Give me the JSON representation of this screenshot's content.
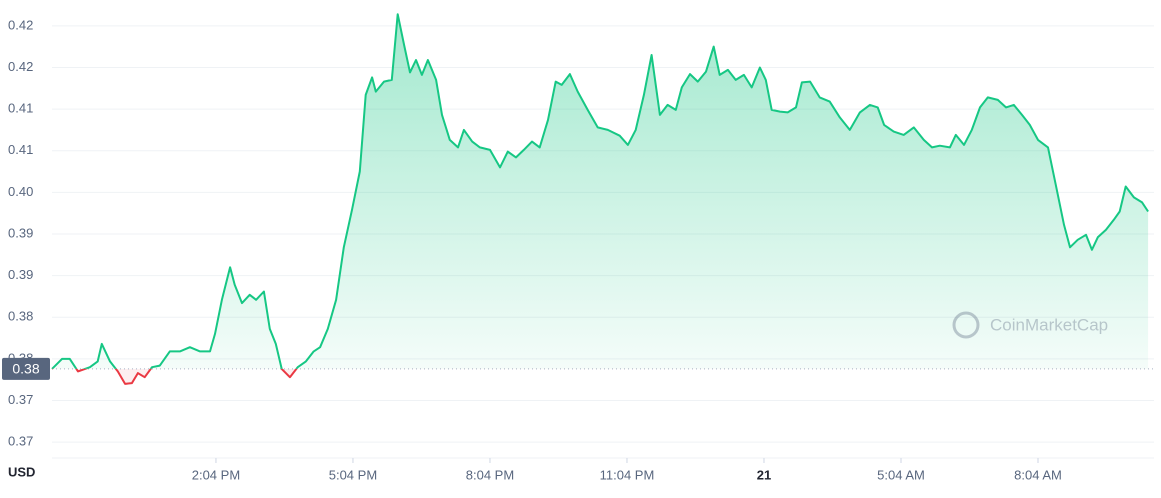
{
  "chart_data": {
    "type": "line",
    "currency": "USD",
    "watermark": "CoinMarketCap",
    "color": "#16c784",
    "down_color": "#ea3943",
    "grid": true,
    "reference": {
      "value": 0.3788,
      "label": "0.38"
    },
    "xlim": [
      10.48,
      34.61
    ],
    "ylim": [
      0.3681,
      0.4231
    ],
    "yticks": [
      {
        "value": 0.42,
        "label": "0.42"
      },
      {
        "value": 0.415,
        "label": "0.42"
      },
      {
        "value": 0.41,
        "label": "0.41"
      },
      {
        "value": 0.405,
        "label": "0.41"
      },
      {
        "value": 0.4,
        "label": "0.40"
      },
      {
        "value": 0.395,
        "label": "0.39"
      },
      {
        "value": 0.39,
        "label": "0.39"
      },
      {
        "value": 0.385,
        "label": "0.38"
      },
      {
        "value": 0.38,
        "label": "0.38"
      },
      {
        "value": 0.375,
        "label": "0.37"
      },
      {
        "value": 0.37,
        "label": "0.37"
      }
    ],
    "xticks": [
      {
        "value": 14.07,
        "label": "2:04 PM"
      },
      {
        "value": 17.07,
        "label": "5:04 PM"
      },
      {
        "value": 20.07,
        "label": "8:04 PM"
      },
      {
        "value": 23.07,
        "label": "11:04 PM"
      },
      {
        "value": 26.07,
        "label": "21"
      },
      {
        "value": 29.07,
        "label": "5:04 AM"
      },
      {
        "value": 32.07,
        "label": "8:04 AM"
      }
    ],
    "x": [
      10.48,
      10.7,
      10.87,
      11.05,
      11.31,
      11.48,
      11.57,
      11.75,
      11.92,
      12.08,
      12.23,
      12.36,
      12.51,
      12.67,
      12.84,
      13.06,
      13.28,
      13.5,
      13.72,
      13.94,
      14.05,
      14.2,
      14.38,
      14.48,
      14.64,
      14.81,
      14.95,
      15.12,
      15.25,
      15.38,
      15.51,
      15.69,
      15.86,
      16.04,
      16.21,
      16.35,
      16.52,
      16.7,
      16.87,
      17.05,
      17.22,
      17.35,
      17.49,
      17.57,
      17.75,
      17.92,
      18.05,
      18.19,
      18.32,
      18.45,
      18.58,
      18.71,
      18.89,
      19.02,
      19.19,
      19.37,
      19.5,
      19.68,
      19.85,
      20.07,
      20.29,
      20.46,
      20.64,
      20.81,
      20.99,
      21.16,
      21.34,
      21.51,
      21.64,
      21.82,
      21.99,
      22.21,
      22.43,
      22.65,
      22.91,
      23.09,
      23.26,
      23.44,
      23.61,
      23.79,
      23.96,
      24.14,
      24.27,
      24.45,
      24.62,
      24.8,
      24.97,
      25.1,
      25.28,
      25.45,
      25.63,
      25.8,
      25.98,
      26.11,
      26.24,
      26.42,
      26.59,
      26.77,
      26.9,
      27.08,
      27.29,
      27.51,
      27.73,
      27.95,
      28.17,
      28.39,
      28.56,
      28.7,
      28.91,
      29.13,
      29.35,
      29.57,
      29.75,
      29.92,
      30.14,
      30.27,
      30.45,
      30.62,
      30.8,
      30.97,
      31.19,
      31.37,
      31.54,
      31.72,
      31.89,
      32.07,
      32.29,
      32.46,
      32.64,
      32.77,
      32.94,
      33.12,
      33.25,
      33.38,
      33.56,
      33.73,
      33.86,
      33.99,
      34.17,
      34.35,
      34.48
    ],
    "values": [
      0.3788,
      0.38,
      0.38,
      0.3785,
      0.379,
      0.3797,
      0.3818,
      0.3797,
      0.3785,
      0.377,
      0.3771,
      0.3783,
      0.3778,
      0.379,
      0.3792,
      0.3809,
      0.3809,
      0.3814,
      0.3809,
      0.3809,
      0.383,
      0.3871,
      0.391,
      0.3889,
      0.3867,
      0.3877,
      0.3871,
      0.3881,
      0.3836,
      0.3818,
      0.3788,
      0.3778,
      0.379,
      0.3797,
      0.3809,
      0.3814,
      0.3836,
      0.3871,
      0.3934,
      0.3979,
      0.4025,
      0.4117,
      0.4138,
      0.4121,
      0.4133,
      0.4135,
      0.4214,
      0.4177,
      0.4144,
      0.4159,
      0.4141,
      0.4159,
      0.4135,
      0.4093,
      0.4063,
      0.4054,
      0.4075,
      0.4061,
      0.4054,
      0.4051,
      0.403,
      0.4049,
      0.4042,
      0.4051,
      0.4061,
      0.4054,
      0.4087,
      0.4133,
      0.4129,
      0.4142,
      0.4121,
      0.4099,
      0.4078,
      0.4075,
      0.4068,
      0.4057,
      0.4075,
      0.4117,
      0.4165,
      0.4093,
      0.4105,
      0.4099,
      0.4126,
      0.4142,
      0.4133,
      0.4145,
      0.4175,
      0.4141,
      0.4147,
      0.4135,
      0.4141,
      0.4126,
      0.415,
      0.4135,
      0.4099,
      0.4097,
      0.4096,
      0.4102,
      0.4132,
      0.4133,
      0.4114,
      0.4109,
      0.409,
      0.4075,
      0.4096,
      0.4105,
      0.4102,
      0.4081,
      0.4073,
      0.4069,
      0.4078,
      0.4063,
      0.4054,
      0.4056,
      0.4054,
      0.4069,
      0.4057,
      0.4075,
      0.4102,
      0.4114,
      0.4111,
      0.4102,
      0.4105,
      0.4093,
      0.4081,
      0.4063,
      0.4054,
      0.4009,
      0.3961,
      0.3934,
      0.3943,
      0.3949,
      0.3931,
      0.3946,
      0.3955,
      0.3967,
      0.3977,
      0.4007,
      0.3994,
      0.3988,
      0.3977
    ]
  }
}
